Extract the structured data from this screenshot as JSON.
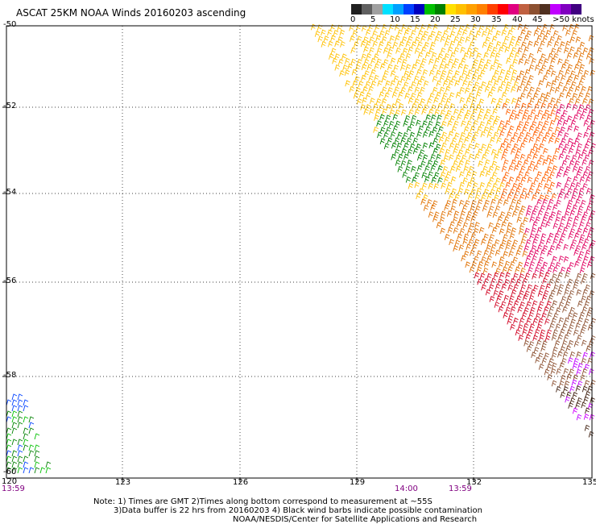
{
  "title": "ASCAT 25KM NOAA Winds 20160203 ascending",
  "colorbar": {
    "colors": [
      "#202020",
      "#606060",
      "#a0a0a0",
      "#00e0ff",
      "#00a0ff",
      "#0040ff",
      "#0000c0",
      "#00c000",
      "#008000",
      "#ffe000",
      "#ffc000",
      "#ffa000",
      "#ff8000",
      "#ff4000",
      "#ff0000",
      "#e00080",
      "#c06040",
      "#8c5030",
      "#503020",
      "#c000ff",
      "#8000c0",
      "#400080"
    ],
    "labels": [
      "0",
      "5",
      "10",
      "15",
      "20",
      "25",
      "30",
      "35",
      "40",
      "45",
      ">50 knots"
    ]
  },
  "axes": {
    "y_labels": [
      "-50",
      "-52",
      "-54",
      "-56",
      "-58",
      "-60"
    ],
    "x_labels": [
      "120",
      "123",
      "126",
      "129",
      "132",
      "135"
    ]
  },
  "times": [
    "13:59",
    "14:00",
    "13:59"
  ],
  "notes": [
    "Note: 1) Times are GMT 2)Times along bottom correspond to measurement at ~55S",
    "3)Data buffer is 22 hrs from 20160203 4) Black wind barbs indicate possible contamination",
    "NOAA/NESDIS/Center for Satellite Applications and Research"
  ]
}
